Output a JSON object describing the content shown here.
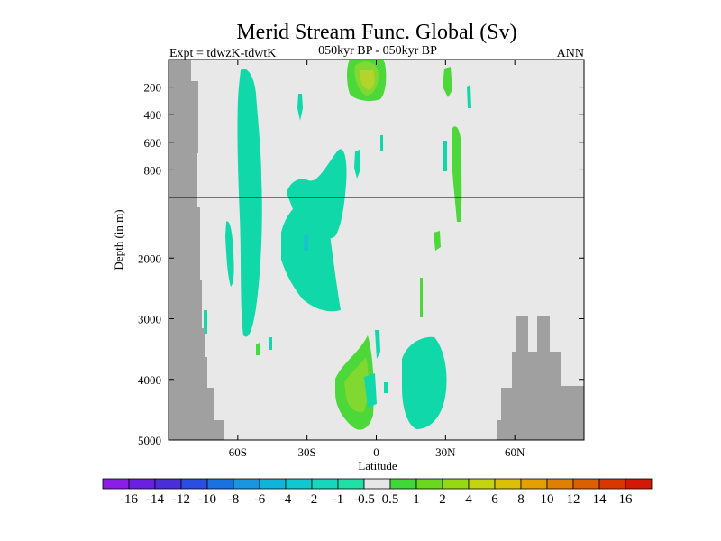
{
  "chart_data": {
    "type": "heatmap",
    "title": "Merid Stream Func. Global (Sv)",
    "subtitle_left": "Expt = tdwzK-tdwtK",
    "subtitle_center": "050kyr BP - 050kyr BP",
    "subtitle_right": "ANN",
    "xlabel": "Latitude",
    "ylabel": "Depth (in m)",
    "xlim": [
      -90,
      90
    ],
    "x_ticks": [
      {
        "value": -60,
        "label": "60S"
      },
      {
        "value": -30,
        "label": "30S"
      },
      {
        "value": 0,
        "label": "0"
      },
      {
        "value": 30,
        "label": "30N"
      },
      {
        "value": 60,
        "label": "60N"
      }
    ],
    "y_ticks_upper": [
      {
        "value": 200,
        "label": "200"
      },
      {
        "value": 400,
        "label": "400"
      },
      {
        "value": 600,
        "label": "600"
      },
      {
        "value": 800,
        "label": "800"
      }
    ],
    "y_ticks_lower": [
      {
        "value": 2000,
        "label": "2000"
      },
      {
        "value": 3000,
        "label": "3000"
      },
      {
        "value": 4000,
        "label": "4000"
      },
      {
        "value": 5000,
        "label": "5000"
      }
    ],
    "upper_depth_range": [
      0,
      1000
    ],
    "lower_depth_range": [
      1000,
      5000
    ],
    "colorbar": {
      "labels": [
        "-16",
        "-14",
        "-12",
        "-10",
        "-8",
        "-6",
        "-4",
        "-2",
        "-1",
        "-0.5",
        "0.5",
        "1",
        "2",
        "4",
        "6",
        "8",
        "10",
        "12",
        "14",
        "16"
      ],
      "colors": [
        "#8a1ee6",
        "#6a20e0",
        "#4a2ed8",
        "#2a4ee0",
        "#1a72e0",
        "#1a96e0",
        "#10b4d8",
        "#10c8d0",
        "#18d6bc",
        "#20e0a8",
        "#e6e6e6",
        "#40d838",
        "#6ad81c",
        "#96d814",
        "#c4d410",
        "#dcc008",
        "#e4a000",
        "#e08000",
        "#dc6000",
        "#d83800",
        "#d41808"
      ]
    },
    "colors": {
      "background": "#e8e8e8",
      "land": "#a0a0a0",
      "level_minus_1": "#10d8a8",
      "level_plus_0_5": "#4cd838",
      "level_plus_1": "#80d830",
      "level_plus_2": "#b4d42c"
    }
  }
}
